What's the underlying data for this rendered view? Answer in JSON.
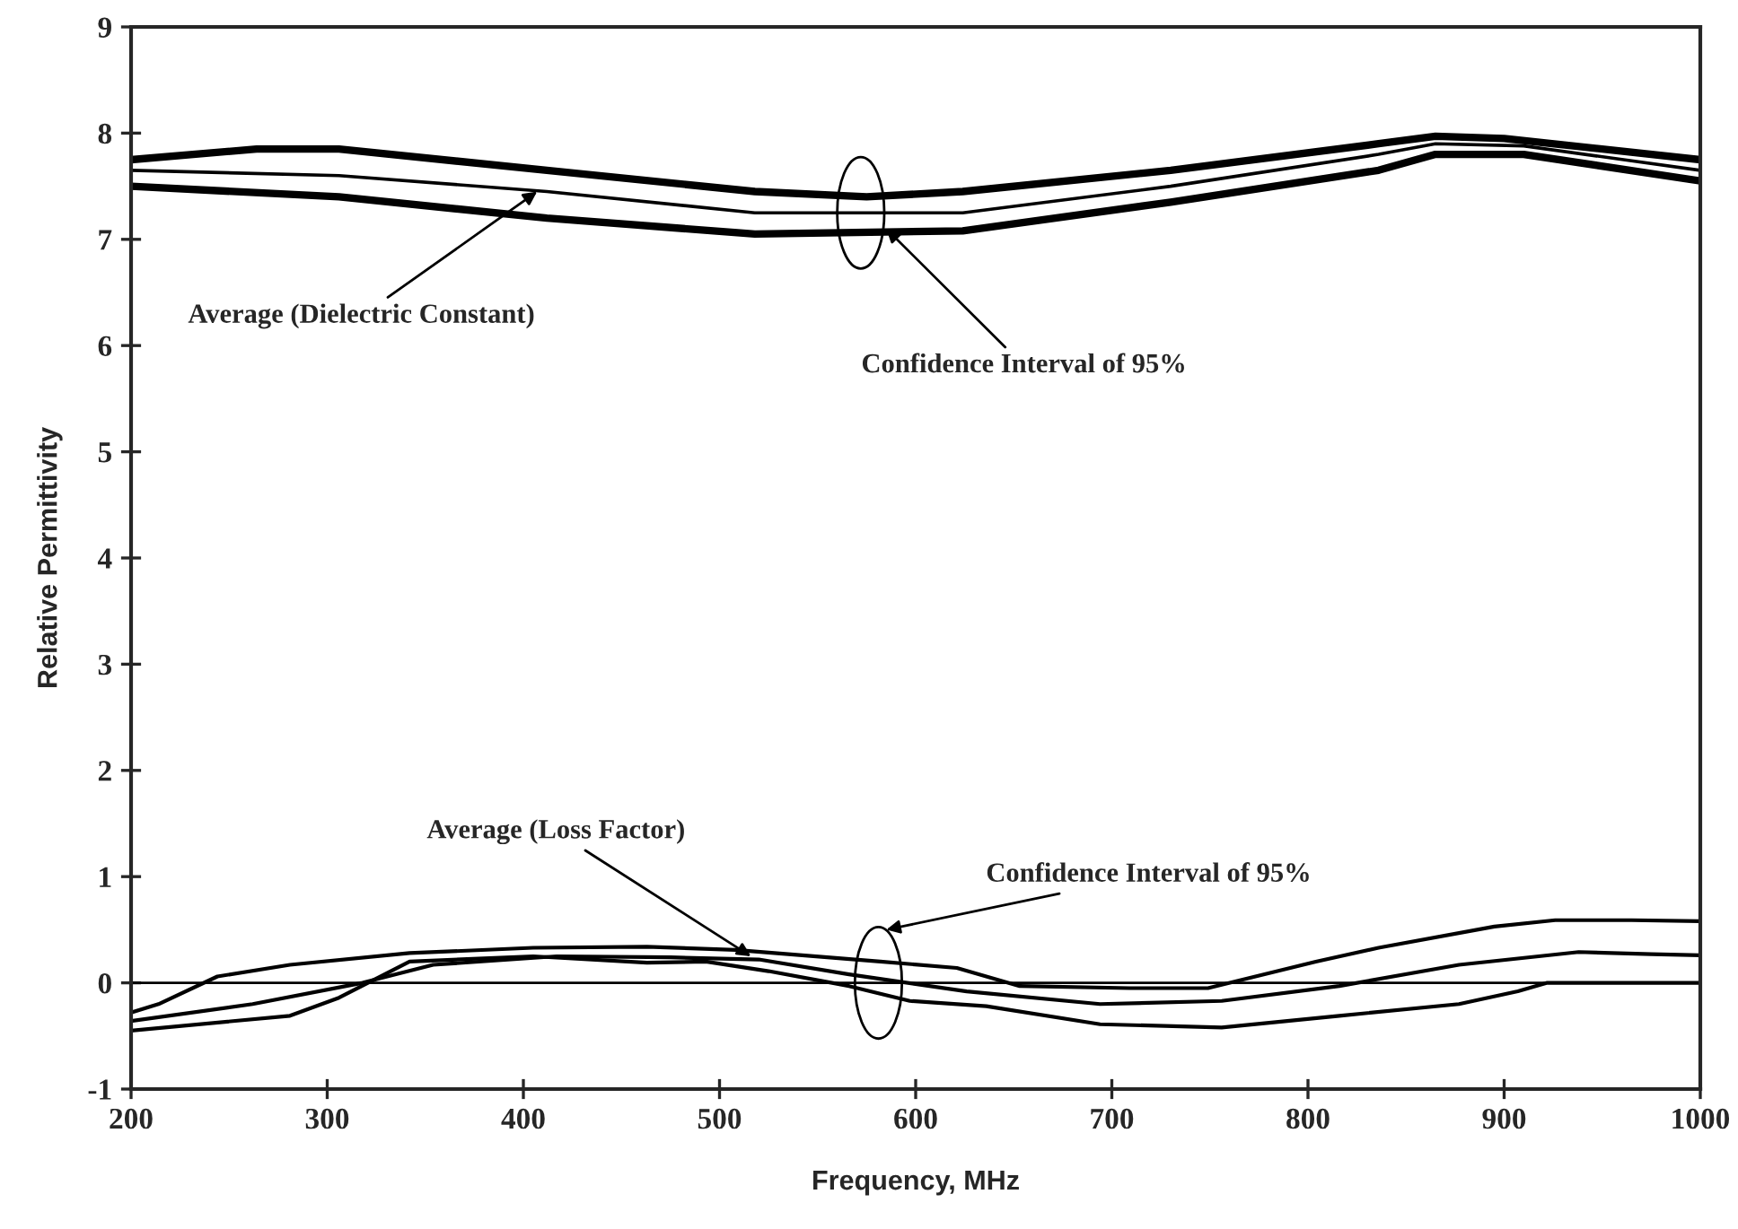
{
  "chart_data": {
    "type": "line",
    "xlabel": "Frequency, MHz",
    "ylabel": "Relative Permittivity",
    "xlim": [
      200,
      1000
    ],
    "ylim": [
      -1,
      9
    ],
    "xticks": [
      200,
      300,
      400,
      500,
      600,
      700,
      800,
      900,
      1000
    ],
    "yticks": [
      -1,
      0,
      1,
      2,
      3,
      4,
      5,
      6,
      7,
      8,
      9
    ],
    "grid": false,
    "legend": false,
    "marker": "none",
    "line_style": "solid",
    "ref_lines": [
      {
        "axis": "y",
        "value": 0,
        "color": "#000000"
      }
    ],
    "series": [
      {
        "color": "#000000",
        "x": [
          200,
          264,
          306,
          412,
          518,
          575,
          624,
          730,
          836,
          865,
          900,
          1000
        ],
        "values": [
          7.75,
          7.85,
          7.85,
          7.65,
          7.45,
          7.4,
          7.45,
          7.65,
          7.9,
          7.97,
          7.95,
          7.75
        ]
      },
      {
        "color": "#000000",
        "x": [
          200,
          306,
          412,
          518,
          624,
          730,
          836,
          865,
          910,
          1000
        ],
        "values": [
          7.65,
          7.6,
          7.45,
          7.25,
          7.25,
          7.5,
          7.8,
          7.9,
          7.88,
          7.65
        ]
      },
      {
        "color": "#000000",
        "x": [
          200,
          306,
          412,
          518,
          624,
          730,
          836,
          865,
          910,
          1000
        ],
        "values": [
          7.5,
          7.4,
          7.2,
          7.05,
          7.08,
          7.35,
          7.65,
          7.8,
          7.8,
          7.55
        ]
      },
      {
        "color": "#000000",
        "x": [
          200,
          214,
          244,
          281,
          342,
          405,
          463,
          508,
          582,
          621,
          653,
          709,
          749,
          804,
          836,
          895,
          926,
          965,
          1000
        ],
        "values": [
          -0.28,
          -0.2,
          0.06,
          0.17,
          0.28,
          0.33,
          0.34,
          0.31,
          0.2,
          0.14,
          -0.03,
          -0.05,
          -0.05,
          0.2,
          0.33,
          0.53,
          0.59,
          0.59,
          0.58
        ]
      },
      {
        "color": "#000000",
        "x": [
          200,
          262,
          318,
          354,
          417,
          475,
          520,
          566,
          626,
          694,
          756,
          816,
          877,
          938,
          975,
          1000
        ],
        "values": [
          -0.36,
          -0.2,
          0,
          0.17,
          0.25,
          0.24,
          0.22,
          0.08,
          -0.08,
          -0.2,
          -0.17,
          -0.03,
          0.17,
          0.29,
          0.27,
          0.26
        ]
      },
      {
        "color": "#000000",
        "x": [
          200,
          281,
          306,
          342,
          405,
          463,
          493,
          525,
          566,
          597,
          636,
          694,
          756,
          816,
          877,
          907,
          922,
          1000
        ],
        "values": [
          -0.45,
          -0.31,
          -0.14,
          0.2,
          0.25,
          0.19,
          0.2,
          0.11,
          -0.03,
          -0.17,
          -0.22,
          -0.39,
          -0.42,
          -0.31,
          -0.2,
          -0.08,
          0,
          0
        ]
      }
    ],
    "annotations": [
      {
        "text": "Average (Dielectric Constant)",
        "x": 407,
        "y": 7.45
      },
      {
        "text": "Confidence Interval of 95%",
        "x": 585,
        "y": 7.1
      },
      {
        "text": "Average (Loss Factor)",
        "x": 516,
        "y": 0.25
      },
      "Confidence Interval of 95%"
    ]
  }
}
